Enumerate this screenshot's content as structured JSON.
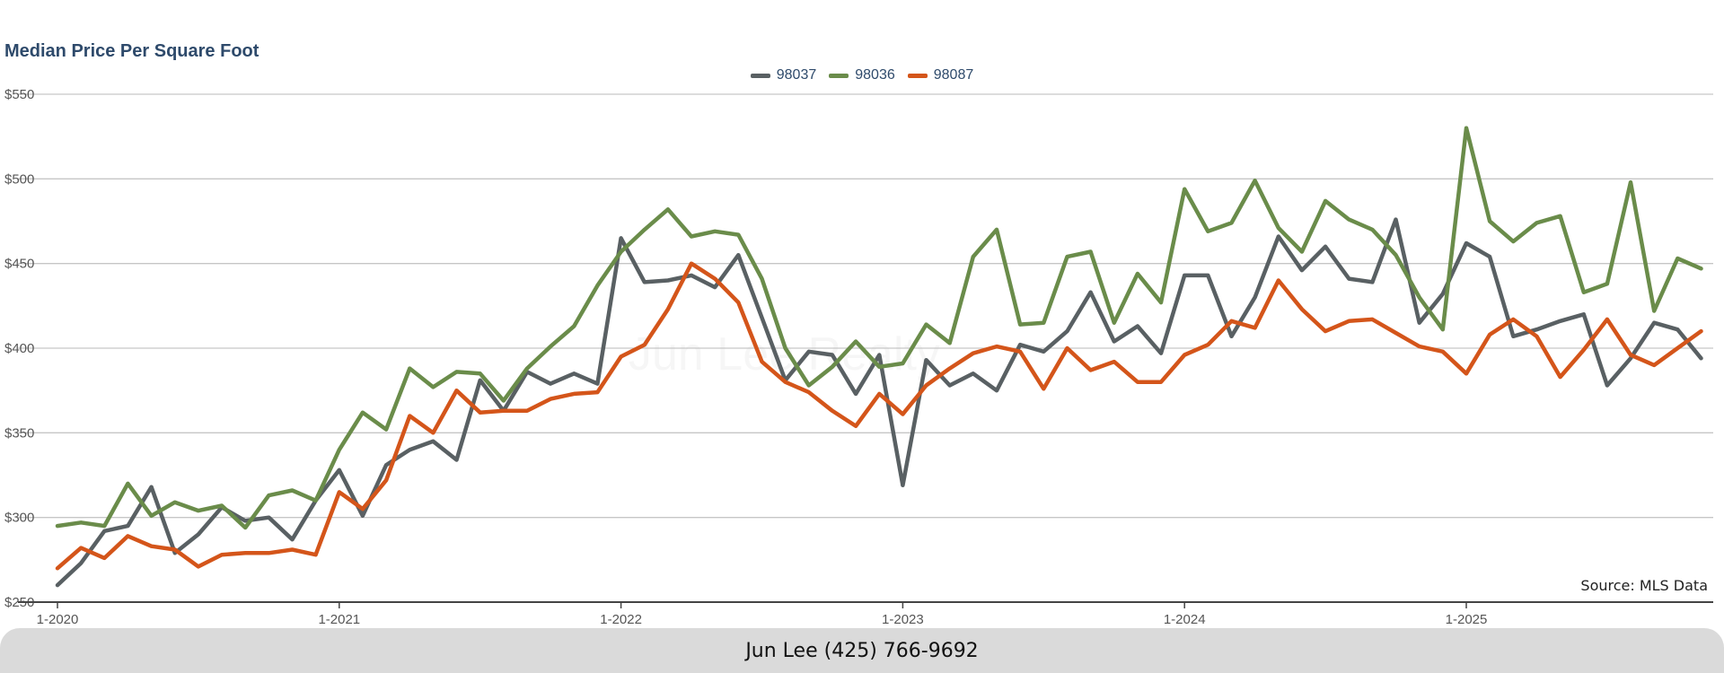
{
  "chart_data": {
    "type": "line",
    "title": "Median Price Per Square Foot",
    "xlabel": "",
    "ylabel": "",
    "ylim": [
      250,
      550
    ],
    "y_ticks": [
      250,
      300,
      350,
      400,
      450,
      500,
      550
    ],
    "y_tick_labels": [
      "$250",
      "$300",
      "$350",
      "$400",
      "$450",
      "$500",
      "$550"
    ],
    "x_ticks": [
      "2020-01",
      "2021-01",
      "2022-01",
      "2023-01",
      "2024-01",
      "2025-01"
    ],
    "x_tick_labels": [
      "1-2020",
      "1-2021",
      "1-2022",
      "1-2023",
      "1-2024",
      "1-2025"
    ],
    "x_start": "2020-01",
    "grid": true,
    "legend_position": "top-center",
    "series": [
      {
        "name": "98037",
        "color": "#596063",
        "values": [
          260,
          273,
          292,
          295,
          318,
          279,
          290,
          306,
          298,
          300,
          287,
          310,
          328,
          301,
          331,
          340,
          345,
          334,
          381,
          363,
          386,
          379,
          385,
          379,
          465,
          439,
          440,
          443,
          436,
          455,
          418,
          381,
          398,
          396,
          373,
          396,
          319,
          393,
          378,
          385,
          375,
          402,
          398,
          410,
          433,
          404,
          413,
          397,
          443,
          443,
          407,
          430,
          466,
          446,
          460,
          441,
          439,
          476,
          415,
          432,
          462,
          454,
          407,
          411,
          416,
          420,
          378,
          394,
          415,
          411,
          394
        ]
      },
      {
        "name": "98036",
        "color": "#6a8c4a",
        "values": [
          295,
          297,
          295,
          320,
          301,
          309,
          304,
          307,
          294,
          313,
          316,
          310,
          340,
          362,
          352,
          388,
          377,
          386,
          385,
          369,
          388,
          401,
          413,
          437,
          457,
          470,
          482,
          466,
          469,
          467,
          441,
          400,
          378,
          389,
          404,
          389,
          391,
          414,
          403,
          454,
          470,
          414,
          415,
          454,
          457,
          415,
          444,
          427,
          494,
          469,
          474,
          499,
          471,
          457,
          487,
          476,
          470,
          455,
          430,
          411,
          530,
          475,
          463,
          474,
          478,
          433,
          438,
          498,
          422,
          453,
          447
        ]
      },
      {
        "name": "98087",
        "color": "#d4551a",
        "values": [
          270,
          282,
          276,
          289,
          283,
          281,
          271,
          278,
          279,
          279,
          281,
          278,
          315,
          305,
          322,
          360,
          350,
          375,
          362,
          363,
          363,
          370,
          373,
          374,
          395,
          402,
          423,
          450,
          441,
          427,
          392,
          380,
          374,
          363,
          354,
          373,
          361,
          378,
          388,
          397,
          401,
          398,
          376,
          400,
          387,
          392,
          380,
          380,
          396,
          402,
          416,
          412,
          440,
          423,
          410,
          416,
          417,
          409,
          401,
          398,
          385,
          408,
          417,
          407,
          383,
          399,
          417,
          396,
          390,
          400,
          410
        ]
      }
    ],
    "annotations": [
      "Source: MLS Data"
    ]
  },
  "footer": {
    "contact": "Jun Lee (425) 766-9692"
  },
  "watermark": {
    "text": "Jun Lee Realty"
  }
}
